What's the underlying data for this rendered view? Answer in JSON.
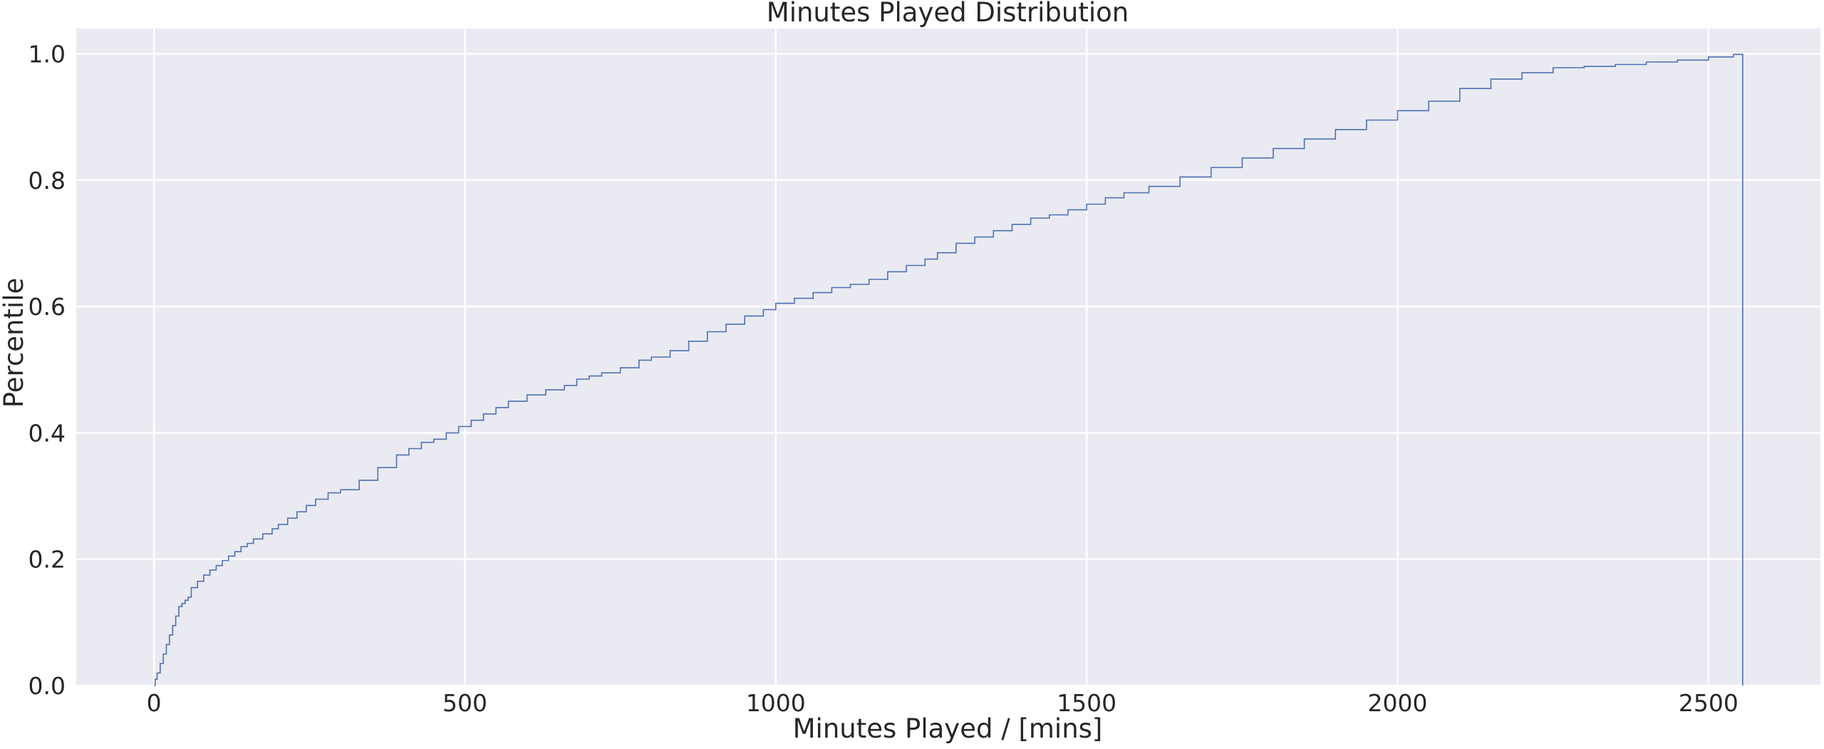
{
  "chart_data": {
    "type": "line",
    "style": "step (empirical CDF)",
    "title": "Minutes Played Distribution",
    "xlabel": "Minutes Played / [mins]",
    "ylabel": "Percentile",
    "xlim": [
      -125,
      2680
    ],
    "ylim": [
      0,
      1.04
    ],
    "xticks": [
      0,
      500,
      1000,
      1500,
      2000,
      2500
    ],
    "yticks": [
      0.0,
      0.2,
      0.4,
      0.6,
      0.8,
      1.0
    ],
    "xtick_labels": [
      "0",
      "500",
      "1000",
      "1500",
      "2000",
      "2500"
    ],
    "ytick_labels": [
      "0.0",
      "0.2",
      "0.4",
      "0.6",
      "0.8",
      "1.0"
    ],
    "grid": true,
    "colors": {
      "background": "#eaeaf2",
      "grid": "#ffffff",
      "line": "#4c72b0"
    },
    "series": [
      {
        "x": [
          0,
          2,
          5,
          10,
          15,
          20,
          25,
          30,
          35,
          40,
          45,
          50,
          55,
          60,
          70,
          80,
          90,
          100,
          110,
          120,
          130,
          140,
          150,
          160,
          175,
          190,
          200,
          215,
          230,
          245,
          260,
          280,
          300,
          330,
          360,
          390,
          410,
          430,
          450,
          470,
          490,
          510,
          530,
          550,
          570,
          600,
          630,
          660,
          680,
          700,
          720,
          750,
          780,
          800,
          830,
          860,
          890,
          920,
          950,
          980,
          1000,
          1030,
          1060,
          1090,
          1120,
          1150,
          1180,
          1210,
          1240,
          1260,
          1290,
          1320,
          1350,
          1380,
          1410,
          1440,
          1470,
          1500,
          1530,
          1560,
          1600,
          1650,
          1700,
          1750,
          1800,
          1850,
          1900,
          1950,
          2000,
          2050,
          2100,
          2150,
          2200,
          2250,
          2300,
          2350,
          2400,
          2450,
          2500,
          2540,
          2555,
          2555
        ],
        "y": [
          0.0,
          0.01,
          0.02,
          0.035,
          0.05,
          0.065,
          0.08,
          0.095,
          0.11,
          0.125,
          0.13,
          0.135,
          0.14,
          0.155,
          0.165,
          0.175,
          0.183,
          0.19,
          0.198,
          0.205,
          0.212,
          0.22,
          0.225,
          0.232,
          0.24,
          0.248,
          0.255,
          0.265,
          0.275,
          0.285,
          0.295,
          0.305,
          0.31,
          0.325,
          0.345,
          0.365,
          0.375,
          0.385,
          0.39,
          0.4,
          0.41,
          0.42,
          0.43,
          0.44,
          0.45,
          0.46,
          0.468,
          0.475,
          0.485,
          0.49,
          0.495,
          0.503,
          0.515,
          0.52,
          0.53,
          0.545,
          0.56,
          0.572,
          0.585,
          0.595,
          0.605,
          0.613,
          0.622,
          0.63,
          0.635,
          0.643,
          0.655,
          0.665,
          0.675,
          0.685,
          0.7,
          0.71,
          0.72,
          0.73,
          0.74,
          0.745,
          0.753,
          0.762,
          0.772,
          0.78,
          0.79,
          0.805,
          0.82,
          0.835,
          0.85,
          0.865,
          0.88,
          0.895,
          0.91,
          0.925,
          0.945,
          0.96,
          0.97,
          0.978,
          0.98,
          0.983,
          0.987,
          0.99,
          0.995,
          0.999,
          1.0,
          0.0
        ]
      }
    ]
  }
}
